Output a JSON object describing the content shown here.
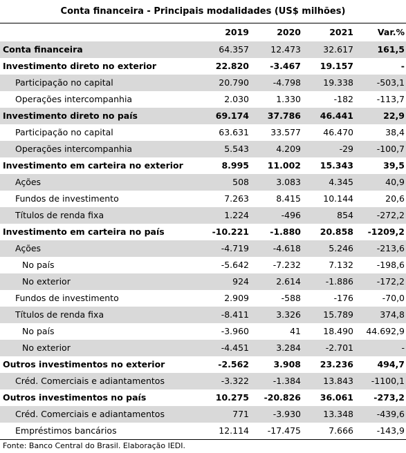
{
  "title": "Conta financeira - Principais modalidades (US$ milhões)",
  "table": {
    "header": [
      "2019",
      "2020",
      "2021",
      "Var.%"
    ],
    "rows": [
      [
        "Conta financeira",
        "64.357",
        "12.473",
        "32.617",
        "161,5"
      ],
      [
        "Investimento direto no exterior",
        "22.820",
        "-3.467",
        "19.157",
        "-"
      ],
      [
        "Participação no capital",
        "20.790",
        "-4.798",
        "19.338",
        "-503,1"
      ],
      [
        "Operações intercompanhia",
        "2.030",
        "1.330",
        "-182",
        "-113,7"
      ],
      [
        "Investimento direto no país",
        "69.174",
        "37.786",
        "46.441",
        "22,9"
      ],
      [
        "Participação no capital",
        "63.631",
        "33.577",
        "46.470",
        "38,4"
      ],
      [
        "Operações intercompanhia",
        "5.543",
        "4.209",
        "-29",
        "-100,7"
      ],
      [
        "Investimento em carteira no exterior",
        "8.995",
        "11.002",
        "15.343",
        "39,5"
      ],
      [
        "Ações",
        "508",
        "3.083",
        "4.345",
        "40,9"
      ],
      [
        "Fundos de investimento",
        "7.263",
        "8.415",
        "10.144",
        "20,6"
      ],
      [
        "Títulos de renda fixa",
        "1.224",
        "-496",
        "854",
        "-272,2"
      ],
      [
        "Investimento em carteira no país",
        "-10.221",
        "-1.880",
        "20.858",
        "-1209,2"
      ],
      [
        "Ações",
        "-4.719",
        "-4.618",
        "5.246",
        "-213,6"
      ],
      [
        "No país",
        "-5.642",
        "-7.232",
        "7.132",
        "-198,6"
      ],
      [
        "No exterior",
        "924",
        "2.614",
        "-1.886",
        "-172,2"
      ],
      [
        "Fundos de investimento",
        "2.909",
        "-588",
        "-176",
        "-70,0"
      ],
      [
        "Títulos de renda fixa",
        "-8.411",
        "3.326",
        "15.789",
        "374,8"
      ],
      [
        "No país",
        "-3.960",
        "41",
        "18.490",
        "44.692,9"
      ],
      [
        "No exterior",
        "-4.451",
        "3.284",
        "-2.701",
        "-"
      ],
      [
        "Outros investimentos no exterior",
        "-2.562",
        "3.908",
        "23.236",
        "494,7"
      ],
      [
        "Créd. Comerciais e adiantamentos",
        "-3.322",
        "-1.384",
        "13.843",
        "-1100,1"
      ],
      [
        "Outros investimentos no país",
        "10.275",
        "-20.826",
        "36.061",
        "-273,2"
      ],
      [
        "Créd. Comerciais e adiantamentos",
        "771",
        "-3.930",
        "13.348",
        "-439,6"
      ],
      [
        "Empréstimos bancários",
        "12.114",
        "-17.475",
        "7.666",
        "-143,9"
      ]
    ]
  },
  "footer": "Fonte: Banco Central do Brasil. Elaboração IEDI."
}
